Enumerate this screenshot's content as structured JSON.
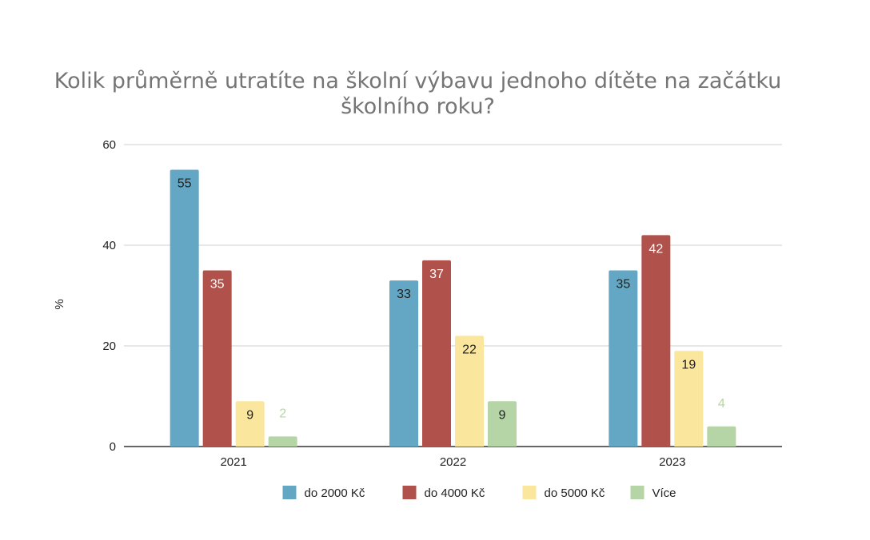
{
  "chart_data": {
    "type": "bar",
    "title_lines": [
      "Kolik průměrně utratíte na školní výbavu jednoho dítěte na začátku",
      "školního roku?"
    ],
    "xlabel": "",
    "ylabel": "%",
    "ylim": [
      0,
      60
    ],
    "yticks": [
      0,
      20,
      40,
      60
    ],
    "grid": true,
    "legend_position": "bottom",
    "categories": [
      "2021",
      "2022",
      "2023"
    ],
    "series": [
      {
        "name": "do 2000 Kč",
        "color": "#63a7c4",
        "label_color": "#222222",
        "values": [
          55,
          33,
          35
        ]
      },
      {
        "name": "do 4000 Kč",
        "color": "#b0524b",
        "label_color": "#ffffff",
        "values": [
          35,
          37,
          42
        ]
      },
      {
        "name": "do 5000 Kč",
        "color": "#fbe69e",
        "label_color": "#222222",
        "values": [
          9,
          22,
          19
        ]
      },
      {
        "name": "Více",
        "color": "#b5d5a6",
        "label_color": "#222222",
        "values": [
          2,
          9,
          4
        ]
      }
    ]
  }
}
